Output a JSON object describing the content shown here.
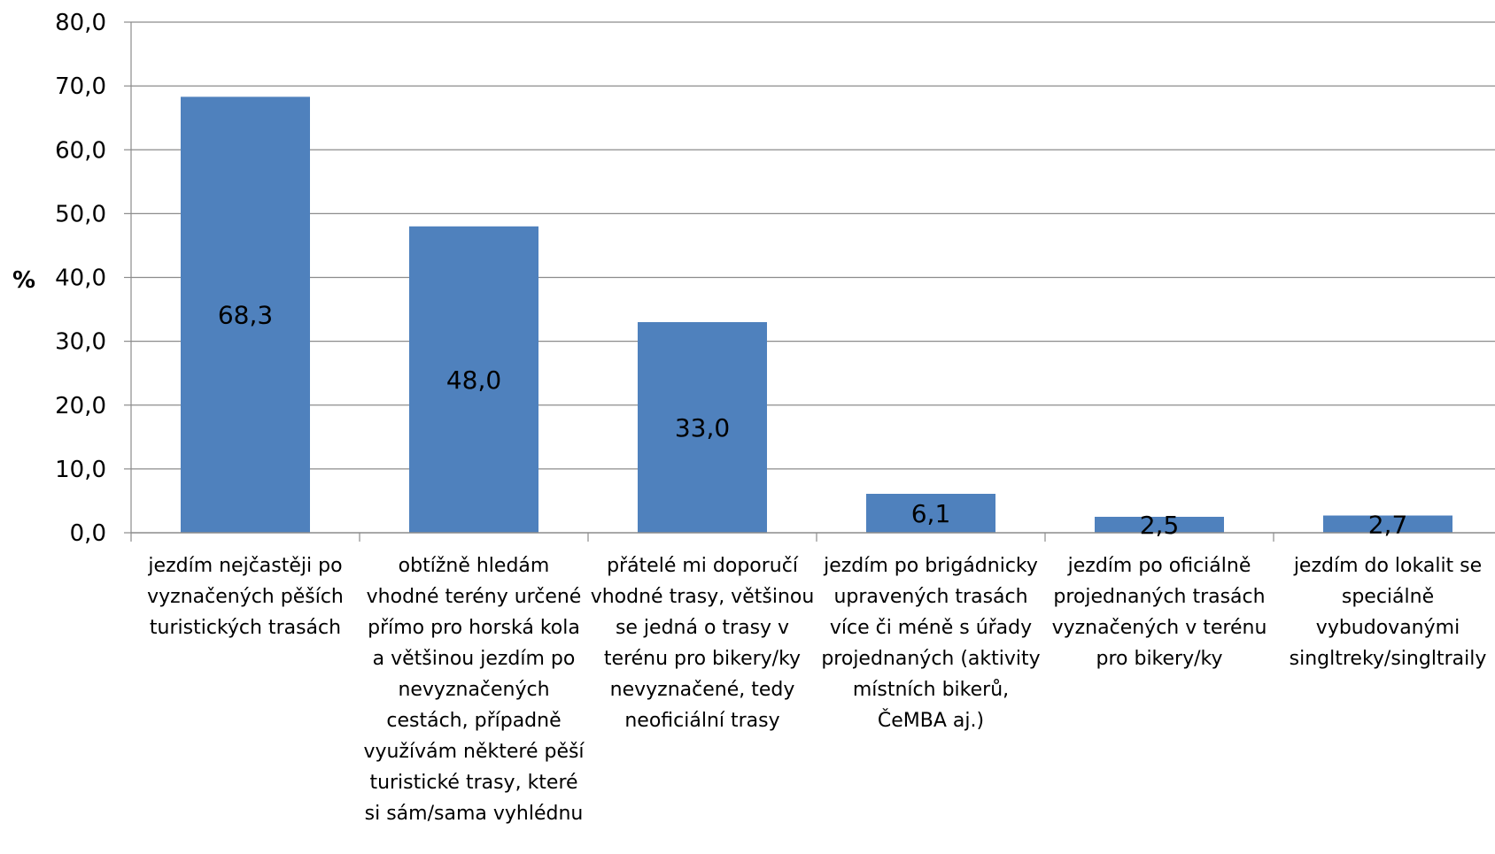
{
  "chart_data": {
    "type": "bar",
    "ylabel": "%",
    "ylim": [
      0,
      80
    ],
    "yticks": [
      "0,0",
      "10,0",
      "20,0",
      "30,0",
      "40,0",
      "50,0",
      "60,0",
      "70,0",
      "80,0"
    ],
    "grid": true,
    "bar_color": "#4F81BD",
    "categories": [
      "jezdím nejčastěji po vyznačených pěších turistických trasách",
      "obtížně hledám vhodné terény určené přímo pro horská kola a většinou jezdím po nevyznačených cestách, případně využívám některé pěší turistické trasy, které si sám/sama vyhlédnu",
      "přátelé mi doporučí vhodné trasy, většinou se jedná o trasy v terénu pro bikery/ky nevyznačené, tedy neoficiální trasy",
      "jezdím po brigádnicky upravených trasách více či méně s úřady projednaných (aktivity místních bikerů, ČeMBA aj.)",
      "jezdím po oficiálně projednaných trasách vyznačených v terénu pro bikery/ky",
      "jezdím do lokalit se speciálně vybudovanými singltreky/singltraily"
    ],
    "values": [
      68.3,
      48.0,
      33.0,
      6.1,
      2.5,
      2.7
    ],
    "value_labels": [
      "68,3",
      "48,0",
      "33,0",
      "6,1",
      "2,5",
      "2,7"
    ]
  }
}
